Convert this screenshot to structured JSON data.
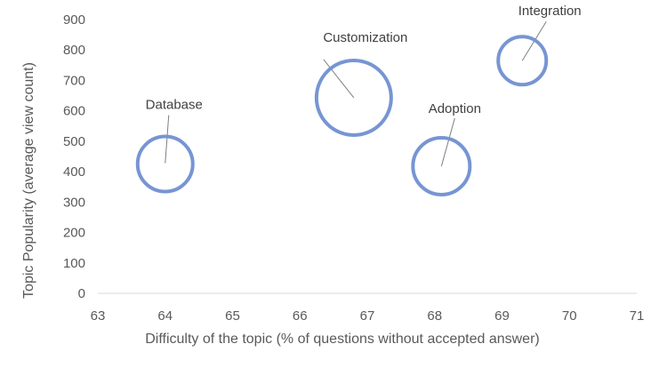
{
  "chart_data": {
    "type": "scatter",
    "subtype": "bubble",
    "title": "",
    "xlabel": "Difficulty of the topic (% of questions without accepted answer)",
    "ylabel": "Topic Popularity  (average view count)",
    "xlim": [
      63,
      71
    ],
    "ylim": [
      0,
      900
    ],
    "x_ticks": [
      "63",
      "64",
      "65",
      "66",
      "67",
      "68",
      "69",
      "70",
      "71"
    ],
    "y_ticks": [
      "0",
      "100",
      "200",
      "300",
      "400",
      "500",
      "600",
      "700",
      "800",
      "900"
    ],
    "grid": false,
    "legend": "none",
    "bubble_color": "#7795d3",
    "points": [
      {
        "label": "Database",
        "x": 64.0,
        "y": 425,
        "size": 31
      },
      {
        "label": "Customization",
        "x": 66.8,
        "y": 643,
        "size": 42
      },
      {
        "label": "Adoption",
        "x": 68.1,
        "y": 418,
        "size": 32
      },
      {
        "label": "Integration",
        "x": 69.3,
        "y": 765,
        "size": 27
      }
    ]
  }
}
